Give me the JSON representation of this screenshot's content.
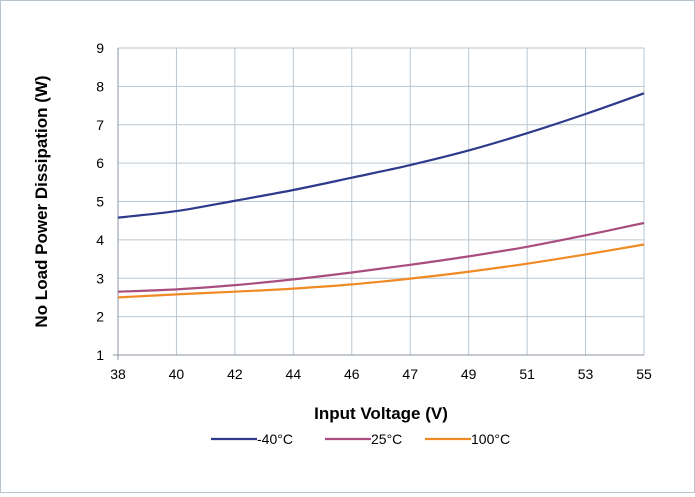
{
  "chart_data": {
    "type": "line",
    "xlabel": "Input Voltage (V)",
    "ylabel": "No Load Power Dissipation (W)",
    "x_categories": [
      "38",
      "40",
      "42",
      "44",
      "46",
      "47",
      "49",
      "51",
      "53",
      "55"
    ],
    "ylim": [
      1,
      9
    ],
    "yticks": [
      "1",
      "2",
      "3",
      "4",
      "5",
      "6",
      "7",
      "8",
      "9"
    ],
    "grid": true,
    "legend_position": "bottom",
    "series": [
      {
        "name": "-40°C",
        "color": "#2e3a8c",
        "values": [
          4.58,
          4.75,
          5.02,
          5.3,
          5.62,
          5.95,
          6.33,
          6.78,
          7.28,
          7.82
        ]
      },
      {
        "name": "25°C",
        "color": "#a84d7e",
        "values": [
          2.65,
          2.71,
          2.82,
          2.97,
          3.15,
          3.35,
          3.57,
          3.82,
          4.12,
          4.44
        ]
      },
      {
        "name": "100°C",
        "color": "#f08a24",
        "values": [
          2.5,
          2.58,
          2.65,
          2.73,
          2.84,
          2.99,
          3.17,
          3.38,
          3.62,
          3.88
        ]
      }
    ]
  }
}
